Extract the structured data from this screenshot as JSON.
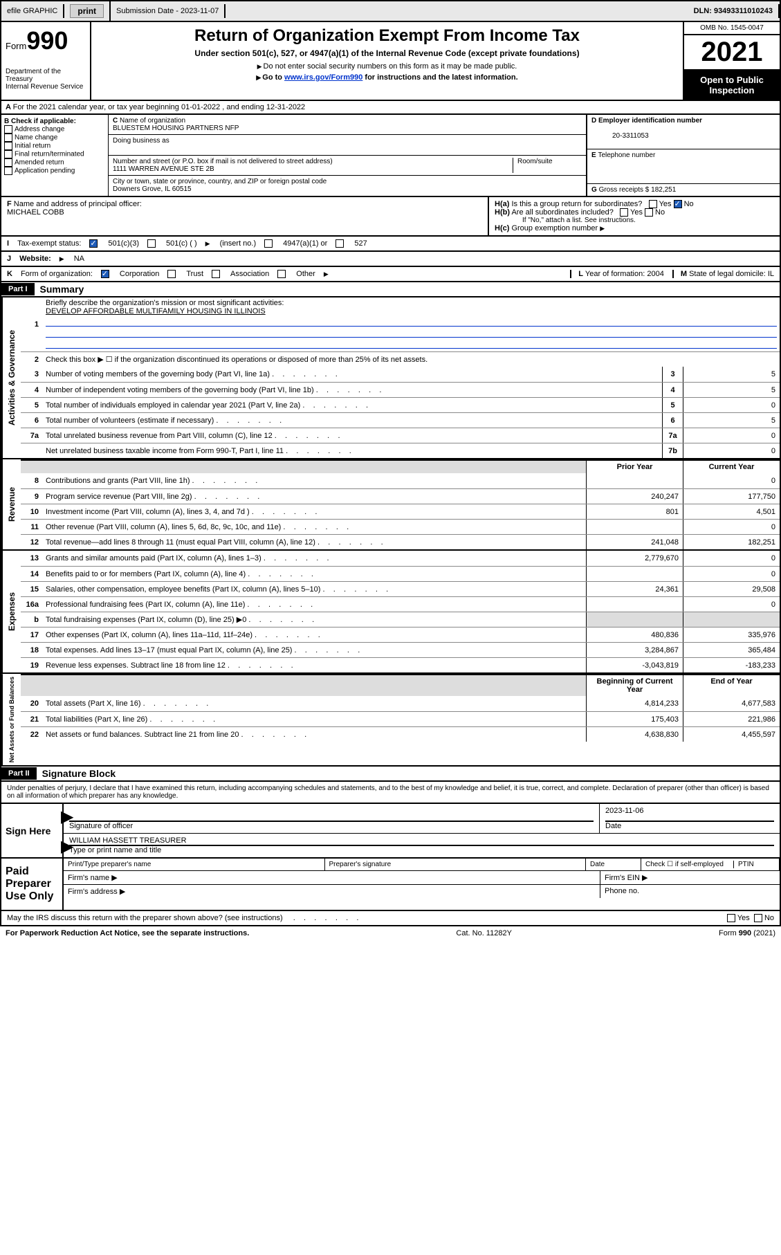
{
  "topbar": {
    "efile": "efile GRAPHIC",
    "print": "print",
    "submission_label": "Submission Date - 2023-11-07",
    "dln": "DLN: 93493311010243"
  },
  "header": {
    "form_word": "Form",
    "form_number": "990",
    "dept": "Department of the Treasury",
    "irs": "Internal Revenue Service",
    "title": "Return of Organization Exempt From Income Tax",
    "subtitle": "Under section 501(c), 527, or 4947(a)(1) of the Internal Revenue Code (except private foundations)",
    "note1": "Do not enter social security numbers on this form as it may be made public.",
    "note2_pre": "Go to ",
    "note2_link": "www.irs.gov/Form990",
    "note2_post": " for instructions and the latest information.",
    "omb": "OMB No. 1545-0047",
    "year": "2021",
    "inspection": "Open to Public Inspection"
  },
  "section_a": "For the 2021 calendar year, or tax year beginning 01-01-2022   , and ending 12-31-2022",
  "section_b": {
    "label": "Check if applicable:",
    "items": [
      "Address change",
      "Name change",
      "Initial return",
      "Final return/terminated",
      "Amended return",
      "Application pending"
    ]
  },
  "section_c": {
    "name_label": "Name of organization",
    "name": "BLUESTEM HOUSING PARTNERS NFP",
    "dba_label": "Doing business as",
    "addr_label": "Number and street (or P.O. box if mail is not delivered to street address)",
    "room_label": "Room/suite",
    "addr": "1111 WARREN AVENUE STE 2B",
    "city_label": "City or town, state or province, country, and ZIP or foreign postal code",
    "city": "Downers Grove, IL  60515"
  },
  "section_d": {
    "label": "Employer identification number",
    "value": "20-3311053"
  },
  "section_e": {
    "label": "Telephone number",
    "value": ""
  },
  "section_g": {
    "label": "Gross receipts $",
    "value": "182,251"
  },
  "section_f": {
    "label": "Name and address of principal officer:",
    "name": "MICHAEL COBB"
  },
  "section_h": {
    "ha": "Is this a group return for subordinates?",
    "hb": "Are all subordinates included?",
    "hb_note": "If \"No,\" attach a list. See instructions.",
    "hc": "Group exemption number"
  },
  "tax_exempt": {
    "label": "Tax-exempt status:",
    "opt1": "501(c)(3)",
    "opt2": "501(c) (  )",
    "opt2_note": "(insert no.)",
    "opt3": "4947(a)(1) or",
    "opt4": "527"
  },
  "website": {
    "label": "Website:",
    "value": "NA"
  },
  "section_k": {
    "label": "Form of organization:",
    "corp": "Corporation",
    "trust": "Trust",
    "assoc": "Association",
    "other": "Other"
  },
  "section_l": {
    "label": "Year of formation:",
    "value": "2004"
  },
  "section_m": {
    "label": "State of legal domicile:",
    "value": "IL"
  },
  "part1": {
    "header": "Part I",
    "title": "Summary",
    "line1_label": "Briefly describe the organization's mission or most significant activities:",
    "line1_value": "DEVELOP AFFORDABLE MULTIFAMILY HOUSING IN ILLINOIS",
    "line2": "Check this box ▶ ☐  if the organization discontinued its operations or disposed of more than 25% of its net assets.",
    "rows_gov": [
      {
        "n": "3",
        "t": "Number of voting members of the governing body (Part VI, line 1a)",
        "box": "3",
        "v": "5"
      },
      {
        "n": "4",
        "t": "Number of independent voting members of the governing body (Part VI, line 1b)",
        "box": "4",
        "v": "5"
      },
      {
        "n": "5",
        "t": "Total number of individuals employed in calendar year 2021 (Part V, line 2a)",
        "box": "5",
        "v": "0"
      },
      {
        "n": "6",
        "t": "Total number of volunteers (estimate if necessary)",
        "box": "6",
        "v": "5"
      },
      {
        "n": "7a",
        "t": "Total unrelated business revenue from Part VIII, column (C), line 12",
        "box": "7a",
        "v": "0"
      },
      {
        "n": "",
        "t": "Net unrelated business taxable income from Form 990-T, Part I, line 11",
        "box": "7b",
        "v": "0"
      }
    ],
    "col_headers": {
      "prior": "Prior Year",
      "current": "Current Year"
    },
    "rows_rev": [
      {
        "n": "8",
        "t": "Contributions and grants (Part VIII, line 1h)",
        "p": "",
        "c": "0"
      },
      {
        "n": "9",
        "t": "Program service revenue (Part VIII, line 2g)",
        "p": "240,247",
        "c": "177,750"
      },
      {
        "n": "10",
        "t": "Investment income (Part VIII, column (A), lines 3, 4, and 7d )",
        "p": "801",
        "c": "4,501"
      },
      {
        "n": "11",
        "t": "Other revenue (Part VIII, column (A), lines 5, 6d, 8c, 9c, 10c, and 11e)",
        "p": "",
        "c": "0"
      },
      {
        "n": "12",
        "t": "Total revenue—add lines 8 through 11 (must equal Part VIII, column (A), line 12)",
        "p": "241,048",
        "c": "182,251"
      }
    ],
    "rows_exp": [
      {
        "n": "13",
        "t": "Grants and similar amounts paid (Part IX, column (A), lines 1–3)",
        "p": "2,779,670",
        "c": "0"
      },
      {
        "n": "14",
        "t": "Benefits paid to or for members (Part IX, column (A), line 4)",
        "p": "",
        "c": "0"
      },
      {
        "n": "15",
        "t": "Salaries, other compensation, employee benefits (Part IX, column (A), lines 5–10)",
        "p": "24,361",
        "c": "29,508"
      },
      {
        "n": "16a",
        "t": "Professional fundraising fees (Part IX, column (A), line 11e)",
        "p": "",
        "c": "0"
      },
      {
        "n": "b",
        "t": "Total fundraising expenses (Part IX, column (D), line 25) ▶0",
        "p": "",
        "c": ""
      },
      {
        "n": "17",
        "t": "Other expenses (Part IX, column (A), lines 11a–11d, 11f–24e)",
        "p": "480,836",
        "c": "335,976"
      },
      {
        "n": "18",
        "t": "Total expenses. Add lines 13–17 (must equal Part IX, column (A), line 25)",
        "p": "3,284,867",
        "c": "365,484"
      },
      {
        "n": "19",
        "t": "Revenue less expenses. Subtract line 18 from line 12",
        "p": "-3,043,819",
        "c": "-183,233"
      }
    ],
    "net_headers": {
      "begin": "Beginning of Current Year",
      "end": "End of Year"
    },
    "rows_net": [
      {
        "n": "20",
        "t": "Total assets (Part X, line 16)",
        "p": "4,814,233",
        "c": "4,677,583"
      },
      {
        "n": "21",
        "t": "Total liabilities (Part X, line 26)",
        "p": "175,403",
        "c": "221,986"
      },
      {
        "n": "22",
        "t": "Net assets or fund balances. Subtract line 21 from line 20",
        "p": "4,638,830",
        "c": "4,455,597"
      }
    ],
    "vtabs": {
      "gov": "Activities & Governance",
      "rev": "Revenue",
      "exp": "Expenses",
      "net": "Net Assets or Fund Balances"
    }
  },
  "part2": {
    "header": "Part II",
    "title": "Signature Block",
    "penalty": "Under penalties of perjury, I declare that I have examined this return, including accompanying schedules and statements, and to the best of my knowledge and belief, it is true, correct, and complete. Declaration of preparer (other than officer) is based on all information of which preparer has any knowledge.",
    "sign_here": "Sign Here",
    "sig_officer": "Signature of officer",
    "sig_date": "2023-11-06",
    "date_label": "Date",
    "officer_name": "WILLIAM HASSETT  TREASURER",
    "type_name": "Type or print name and title",
    "paid": "Paid Preparer Use Only",
    "prep_name": "Print/Type preparer's name",
    "prep_sig": "Preparer's signature",
    "prep_date": "Date",
    "prep_check": "Check ☐ if self-employed",
    "ptin": "PTIN",
    "firm_name": "Firm's name  ▶",
    "firm_ein": "Firm's EIN ▶",
    "firm_addr": "Firm's address ▶",
    "phone": "Phone no.",
    "discuss": "May the IRS discuss this return with the preparer shown above? (see instructions)",
    "yes": "Yes",
    "no": "No"
  },
  "footer": {
    "paperwork": "For Paperwork Reduction Act Notice, see the separate instructions.",
    "cat": "Cat. No. 11282Y",
    "formref": "Form 990 (2021)"
  },
  "colors": {
    "link": "#0033cc",
    "check": "#1e5bb8"
  }
}
